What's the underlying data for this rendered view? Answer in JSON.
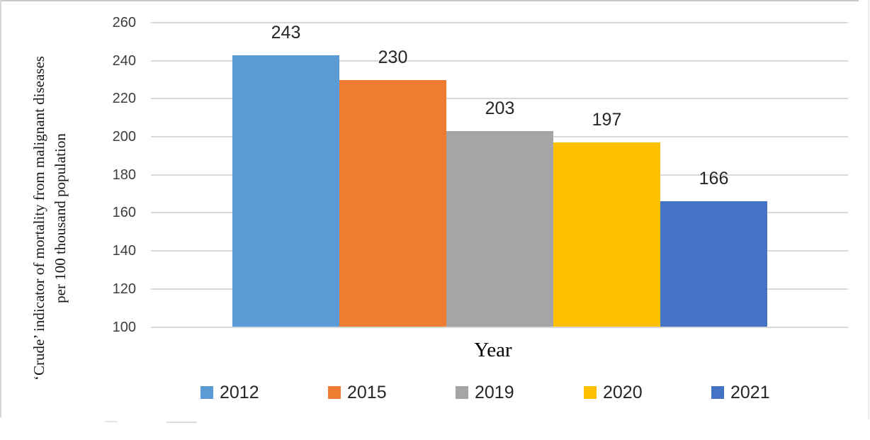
{
  "chart_data": {
    "type": "bar",
    "title": "",
    "xlabel": "Year",
    "ylabel": "‘Crude’ indicator of mortality from malignant diseases per 100 thousand population",
    "ylabel_line1": "‘Crude’ indicator of mortality from malignant diseases",
    "ylabel_line2": "per 100 thousand population",
    "ylim": [
      100,
      260
    ],
    "yticks": [
      260,
      240,
      220,
      200,
      180,
      160,
      140,
      120,
      100
    ],
    "grid": true,
    "legend_position": "bottom",
    "categories": [
      "2012",
      "2015",
      "2019",
      "2020",
      "2021"
    ],
    "values": [
      243,
      230,
      203,
      197,
      166
    ],
    "series": [
      {
        "name": "2012",
        "value": 243,
        "color": "#5B9BD5"
      },
      {
        "name": "2015",
        "value": 230,
        "color": "#ED7D31"
      },
      {
        "name": "2019",
        "value": 203,
        "color": "#A5A5A5"
      },
      {
        "name": "2020",
        "value": 197,
        "color": "#FFC000"
      },
      {
        "name": "2021",
        "value": 166,
        "color": "#4472C4"
      }
    ],
    "gridline_color": "#D9D9D9",
    "tick_label_color": "#3d3d3d",
    "value_label_color": "#262626"
  }
}
